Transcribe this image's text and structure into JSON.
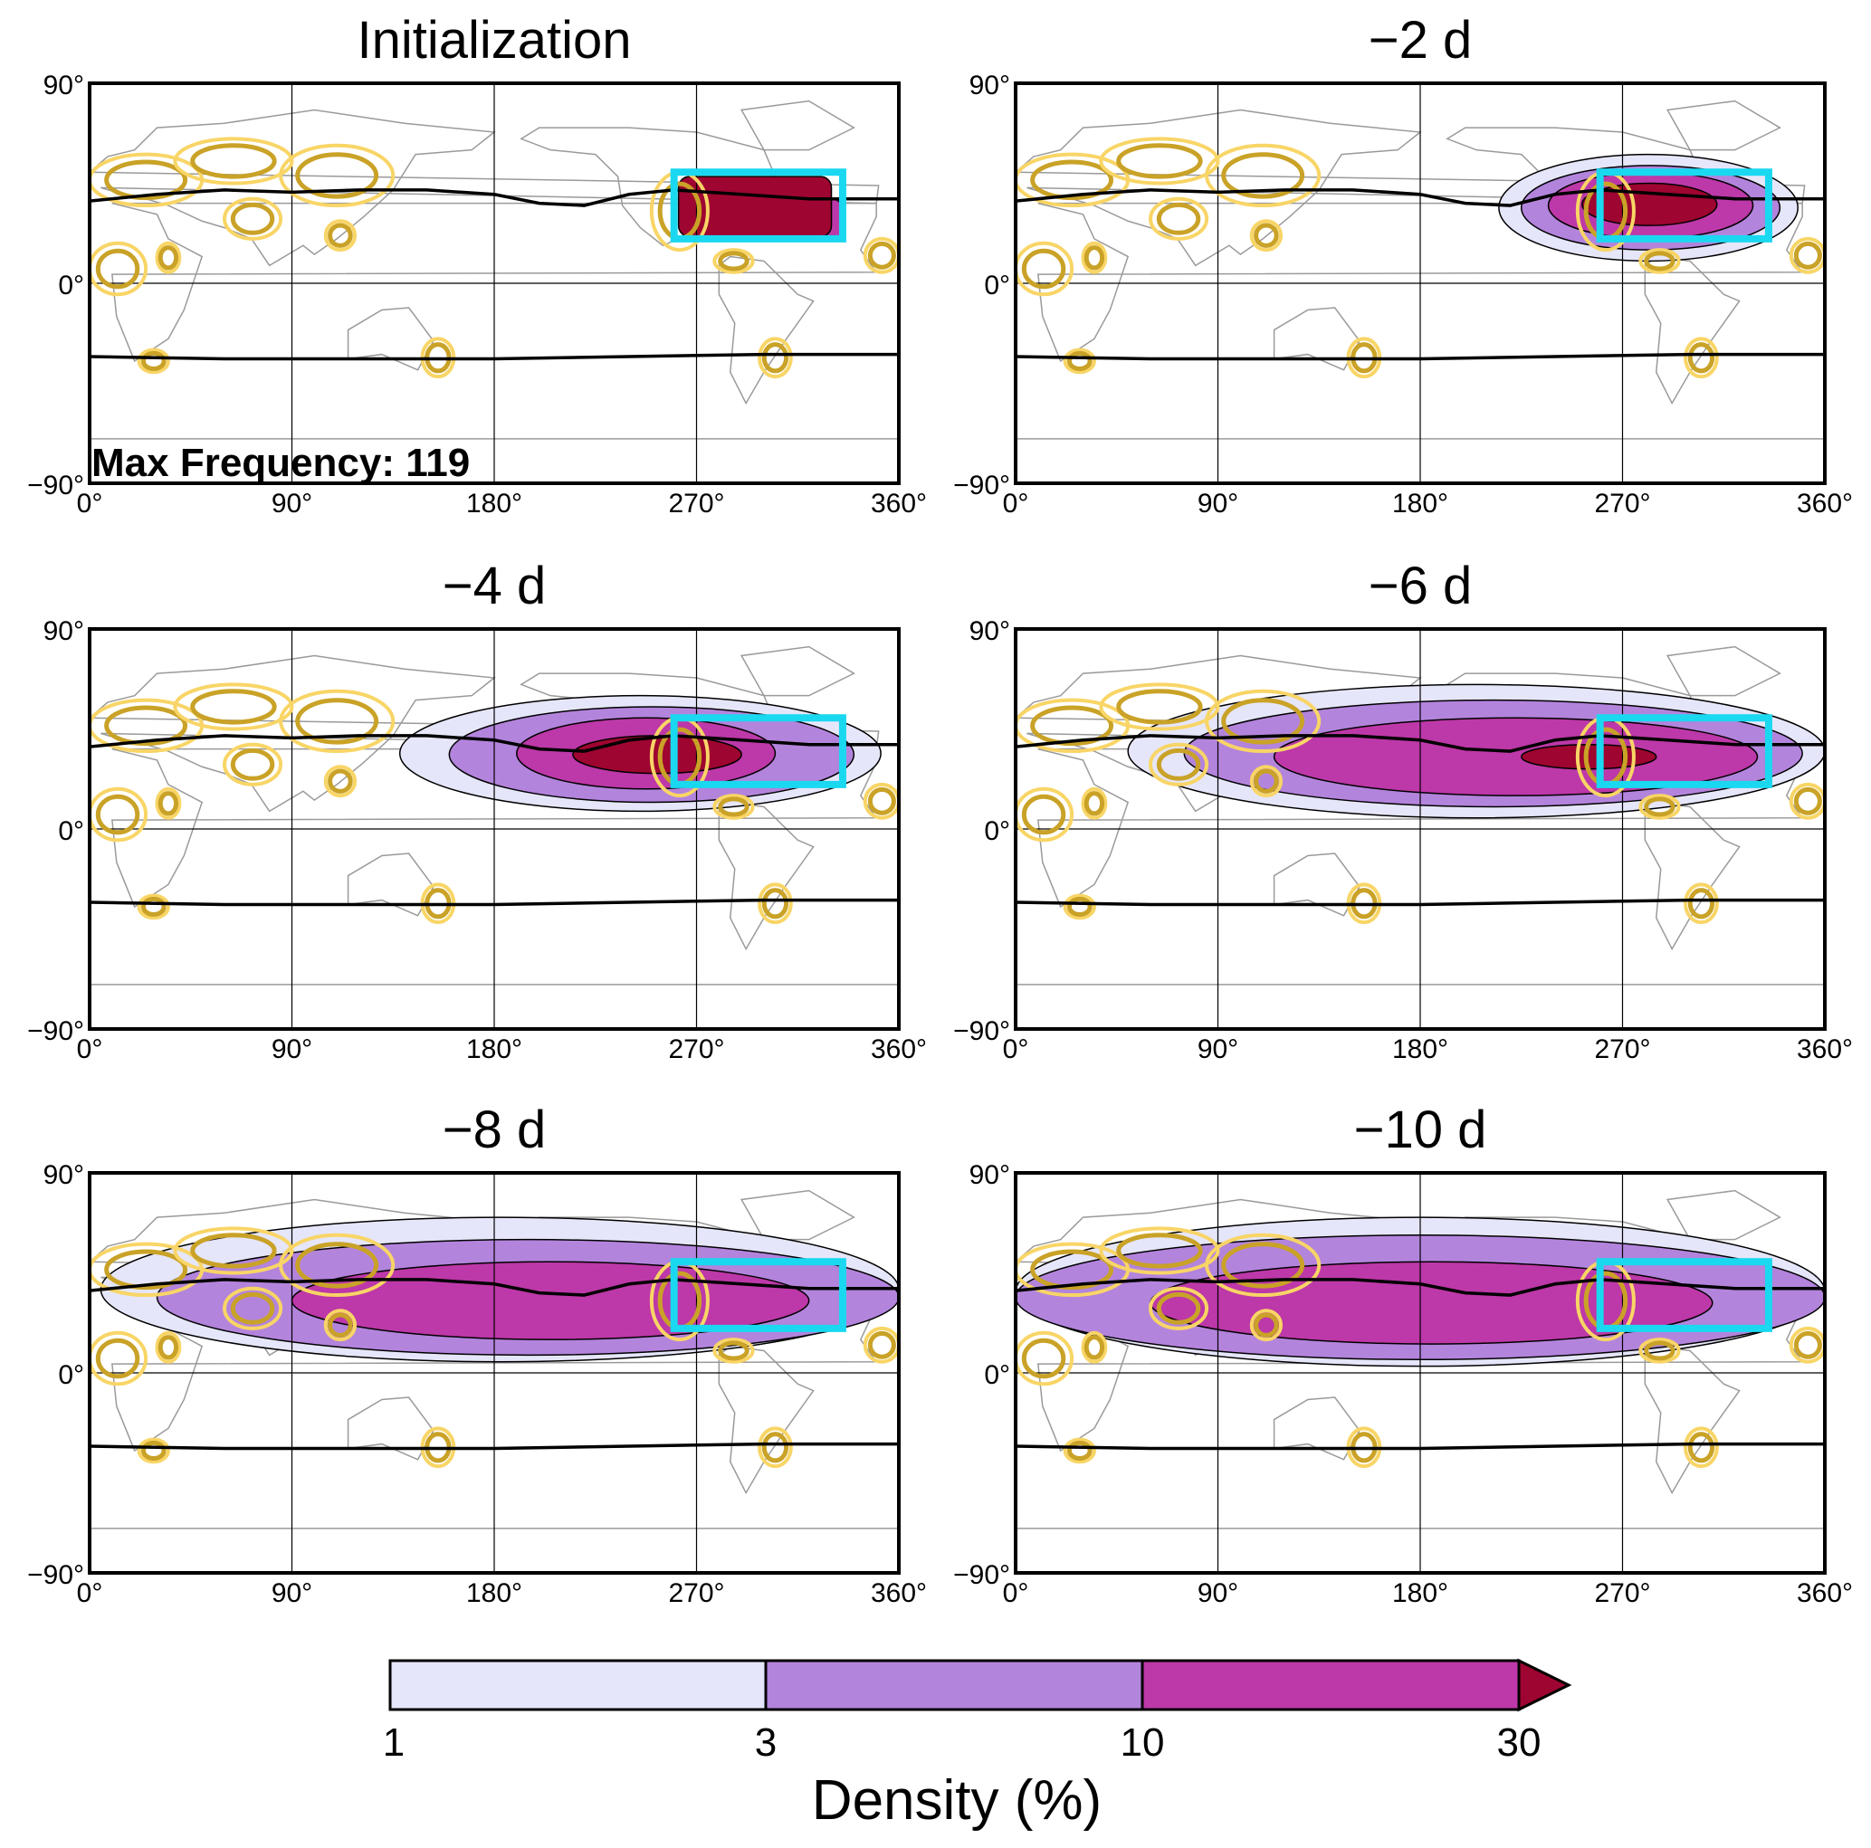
{
  "panels": [
    {
      "title": "Initialization",
      "annotation": "Max Frequency: 119",
      "density": [
        {
          "level": 10,
          "lon": [
            300,
            335
          ],
          "lat": [
            20,
            38
          ]
        },
        {
          "level": 30,
          "lon": [
            262,
            330
          ],
          "lat": [
            21,
            48
          ]
        }
      ]
    },
    {
      "title": "−2 d",
      "density": [
        {
          "level": 1,
          "lon": [
            215,
            348
          ],
          "lat": [
            10,
            58
          ]
        },
        {
          "level": 3,
          "lon": [
            225,
            340
          ],
          "lat": [
            15,
            53
          ]
        },
        {
          "level": 10,
          "lon": [
            237,
            328
          ],
          "lat": [
            20,
            50
          ]
        },
        {
          "level": 30,
          "lon": [
            252,
            312
          ],
          "lat": [
            26,
            45
          ]
        }
      ]
    },
    {
      "title": "−4 d",
      "density": [
        {
          "level": 1,
          "lon": [
            138,
            352
          ],
          "lat": [
            8,
            60
          ]
        },
        {
          "level": 3,
          "lon": [
            160,
            340
          ],
          "lat": [
            12,
            55
          ]
        },
        {
          "level": 10,
          "lon": [
            190,
            305
          ],
          "lat": [
            18,
            50
          ]
        },
        {
          "level": 30,
          "lon": [
            215,
            290
          ],
          "lat": [
            25,
            42
          ]
        }
      ]
    },
    {
      "title": "−6 d",
      "density": [
        {
          "level": 1,
          "lon": [
            50,
            360
          ],
          "lat": [
            5,
            65
          ]
        },
        {
          "level": 3,
          "lon": [
            75,
            350
          ],
          "lat": [
            10,
            58
          ]
        },
        {
          "level": 10,
          "lon": [
            115,
            330
          ],
          "lat": [
            15,
            50
          ]
        },
        {
          "level": 30,
          "lon": [
            225,
            285
          ],
          "lat": [
            27,
            38
          ]
        }
      ]
    },
    {
      "title": "−8 d",
      "density": [
        {
          "level": 1,
          "lon": [
            5,
            360
          ],
          "lat": [
            5,
            70
          ]
        },
        {
          "level": 3,
          "lon": [
            30,
            360
          ],
          "lat": [
            8,
            60
          ]
        },
        {
          "level": 10,
          "lon": [
            90,
            320
          ],
          "lat": [
            15,
            50
          ]
        }
      ]
    },
    {
      "title": "−10 d",
      "density": [
        {
          "level": 1,
          "lon": [
            0,
            360
          ],
          "lat": [
            3,
            70
          ]
        },
        {
          "level": 3,
          "lon": [
            0,
            360
          ],
          "lat": [
            6,
            62
          ]
        },
        {
          "level": 10,
          "lon": [
            60,
            310
          ],
          "lat": [
            13,
            50
          ]
        }
      ]
    }
  ],
  "axes": {
    "x_ticks": [
      "0°",
      "90°",
      "180°",
      "270°",
      "360°"
    ],
    "y_ticks": [
      "90°",
      "0°",
      "−90°"
    ],
    "lon_range": [
      0,
      360
    ],
    "lat_range": [
      -90,
      90
    ]
  },
  "target_region": {
    "lon": [
      260,
      335
    ],
    "lat": [
      20,
      50
    ],
    "color": "#1ad8f0"
  },
  "jet_lines": {
    "north": [
      [
        0,
        37
      ],
      [
        30,
        40
      ],
      [
        60,
        42
      ],
      [
        90,
        41
      ],
      [
        120,
        42
      ],
      [
        150,
        42
      ],
      [
        180,
        40
      ],
      [
        200,
        36
      ],
      [
        220,
        35
      ],
      [
        240,
        40
      ],
      [
        260,
        42
      ],
      [
        290,
        40
      ],
      [
        320,
        38
      ],
      [
        360,
        38
      ]
    ],
    "south": [
      [
        0,
        -33
      ],
      [
        60,
        -34
      ],
      [
        120,
        -34
      ],
      [
        180,
        -34
      ],
      [
        240,
        -33
      ],
      [
        300,
        -32
      ],
      [
        360,
        -32
      ]
    ]
  },
  "highlight_contours": {
    "colors": {
      "outer": "#f8d566",
      "inner": "#c9a227"
    },
    "regions": [
      {
        "lon": [
          0,
          50
        ],
        "lat": [
          35,
          58
        ]
      },
      {
        "lon": [
          38,
          90
        ],
        "lat": [
          45,
          65
        ]
      },
      {
        "lon": [
          85,
          135
        ],
        "lat": [
          35,
          62
        ]
      },
      {
        "lon": [
          60,
          85
        ],
        "lat": [
          20,
          38
        ]
      },
      {
        "lon": [
          105,
          118
        ],
        "lat": [
          15,
          28
        ]
      },
      {
        "lon": [
          0,
          25
        ],
        "lat": [
          -5,
          18
        ]
      },
      {
        "lon": [
          30,
          40
        ],
        "lat": [
          5,
          18
        ]
      },
      {
        "lon": [
          250,
          275
        ],
        "lat": [
          15,
          50
        ]
      },
      {
        "lon": [
          278,
          295
        ],
        "lat": [
          5,
          15
        ]
      },
      {
        "lon": [
          345,
          360
        ],
        "lat": [
          5,
          20
        ]
      },
      {
        "lon": [
          148,
          162
        ],
        "lat": [
          -42,
          -25
        ]
      },
      {
        "lon": [
          298,
          312
        ],
        "lat": [
          -42,
          -25
        ]
      },
      {
        "lon": [
          22,
          35
        ],
        "lat": [
          -40,
          -30
        ]
      }
    ]
  },
  "colorbar": {
    "ticks": [
      "1",
      "3",
      "10",
      "30"
    ],
    "label": "Density (%)",
    "levels": [
      {
        "from": 1,
        "to": 3,
        "color": "#e6e6fa"
      },
      {
        "from": 3,
        "to": 10,
        "color": "#b384dc"
      },
      {
        "from": 10,
        "to": 30,
        "color": "#bd38a8"
      },
      {
        "from": 30,
        "color": "#9e0530"
      }
    ],
    "extend": "max"
  }
}
